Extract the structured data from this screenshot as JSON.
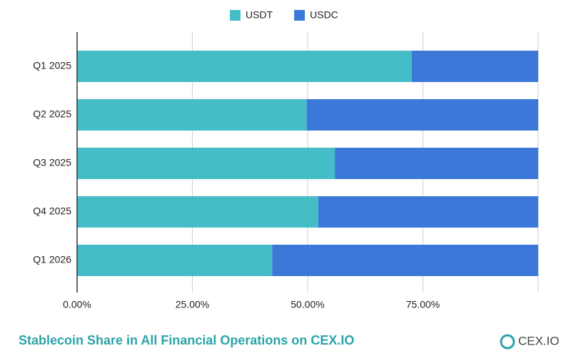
{
  "chart_data": {
    "type": "stacked-bar-horizontal",
    "title": "Stablecoin Share in All Financial Operations on CEX.IO",
    "categories": [
      "Q1 2025",
      "Q2 2025",
      "Q3 2025",
      "Q4 2025",
      "Q1 2026"
    ],
    "series": [
      {
        "name": "USDT",
        "color": "#45bdc6",
        "values": [
          72.6,
          49.8,
          55.9,
          52.3,
          42.3
        ]
      },
      {
        "name": "USDC",
        "color": "#3b78d8",
        "values": [
          27.4,
          50.2,
          44.1,
          47.7,
          57.7
        ]
      }
    ],
    "xlim": [
      0,
      100
    ],
    "xticks": [
      {
        "value": 0,
        "label": "0.00%"
      },
      {
        "value": 25,
        "label": "25.00%"
      },
      {
        "value": 50,
        "label": "50.00%"
      },
      {
        "value": 75,
        "label": "75.00%"
      }
    ],
    "grid": true,
    "legend": "top"
  },
  "footer": {
    "brand": "CEX.IO"
  }
}
